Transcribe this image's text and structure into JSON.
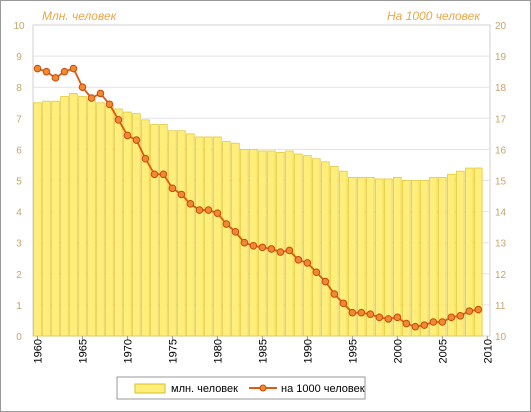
{
  "chart_data": {
    "type": "bar",
    "left_axis_label": "Млн. человек",
    "right_axis_label": "На 1000 человек",
    "left_ylim": [
      0,
      10
    ],
    "right_ylim": [
      10,
      20
    ],
    "left_ticks": [
      "0",
      "1",
      "2",
      "3",
      "4",
      "5",
      "6",
      "7",
      "8",
      "9",
      "10"
    ],
    "right_ticks": [
      "10",
      "11",
      "12",
      "13",
      "14",
      "15",
      "16",
      "17",
      "18",
      "19",
      "20"
    ],
    "x_ticks": [
      "1960",
      "1965",
      "1970",
      "1975",
      "1980",
      "1985",
      "1990",
      "1995",
      "2000",
      "2005",
      "2010"
    ],
    "grid": true,
    "legend_position": "bottom",
    "years": [
      1960,
      1961,
      1962,
      1963,
      1964,
      1965,
      1966,
      1967,
      1968,
      1969,
      1970,
      1971,
      1972,
      1973,
      1974,
      1975,
      1976,
      1977,
      1978,
      1979,
      1980,
      1981,
      1982,
      1983,
      1984,
      1985,
      1986,
      1987,
      1988,
      1989,
      1990,
      1991,
      1992,
      1993,
      1994,
      1995,
      1996,
      1997,
      1998,
      1999,
      2000,
      2001,
      2002,
      2003,
      2004,
      2005,
      2006,
      2007,
      2008,
      2009
    ],
    "series": [
      {
        "name": "млн. человек",
        "type": "bar",
        "axis": "left",
        "color": "#ffef7a",
        "values": [
          7.5,
          7.55,
          7.55,
          7.7,
          7.8,
          7.7,
          7.6,
          7.5,
          7.4,
          7.3,
          7.2,
          7.15,
          6.95,
          6.8,
          6.8,
          6.6,
          6.6,
          6.5,
          6.4,
          6.4,
          6.4,
          6.25,
          6.2,
          6.0,
          6.0,
          5.95,
          5.95,
          5.9,
          5.95,
          5.85,
          5.8,
          5.7,
          5.6,
          5.45,
          5.3,
          5.1,
          5.1,
          5.1,
          5.05,
          5.05,
          5.1,
          5.0,
          5.0,
          5.0,
          5.1,
          5.1,
          5.2,
          5.3,
          5.4,
          5.4
        ]
      },
      {
        "name": "на 1000 человек",
        "type": "line",
        "axis": "right",
        "color": "#e05a10",
        "values": [
          18.6,
          18.5,
          18.3,
          18.5,
          18.6,
          18.0,
          17.65,
          17.8,
          17.45,
          16.95,
          16.45,
          16.3,
          15.7,
          15.2,
          15.2,
          14.75,
          14.55,
          14.25,
          14.05,
          14.05,
          13.95,
          13.6,
          13.35,
          13.0,
          12.9,
          12.85,
          12.8,
          12.7,
          12.75,
          12.45,
          12.35,
          12.05,
          11.75,
          11.35,
          11.05,
          10.75,
          10.75,
          10.7,
          10.6,
          10.55,
          10.6,
          10.4,
          10.3,
          10.35,
          10.45,
          10.45,
          10.6,
          10.65,
          10.8,
          10.85
        ]
      }
    ]
  }
}
